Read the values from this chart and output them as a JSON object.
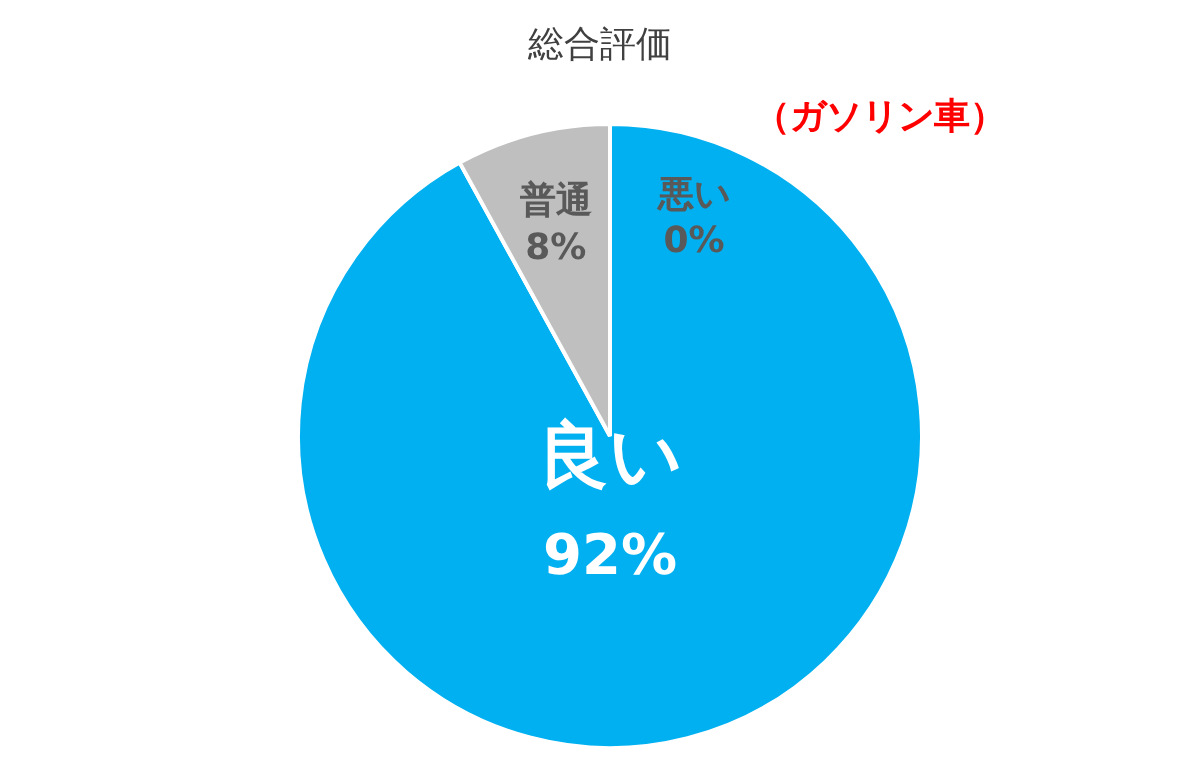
{
  "chart_data": {
    "type": "pie",
    "title": "総合評価",
    "subtitle": "（ガソリン車）",
    "categories": [
      "悪い",
      "良い",
      "普通"
    ],
    "values": [
      0,
      92,
      8
    ],
    "colors": [
      "#7f7f7f",
      "#00b0f0",
      "#bfbfbf"
    ],
    "value_labels": [
      "0%",
      "92%",
      "8%"
    ]
  }
}
